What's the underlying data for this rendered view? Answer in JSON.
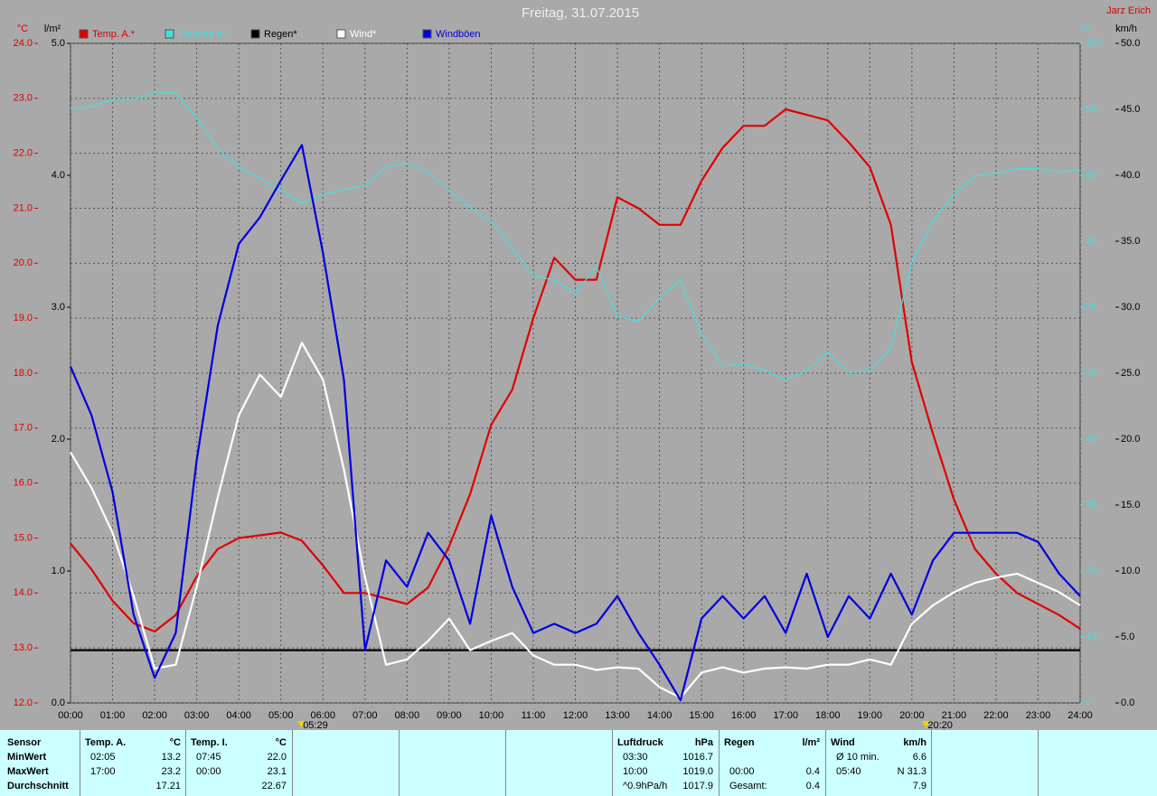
{
  "chart_data": {
    "type": "line",
    "title": "Freitag, 31.07.2015",
    "author": "Jarz Erich",
    "axis_labels": {
      "y": "°C",
      "y2": "l/m²",
      "y3": "%",
      "y4": "km/h"
    },
    "x": [
      0,
      0.5,
      1,
      1.5,
      2,
      2.5,
      3,
      3.5,
      4,
      4.5,
      5,
      5.5,
      6,
      6.5,
      7,
      7.5,
      8,
      8.5,
      9,
      9.5,
      10,
      10.5,
      11,
      11.5,
      12,
      12.5,
      13,
      13.5,
      14,
      14.5,
      15,
      15.5,
      16,
      16.5,
      17,
      17.5,
      18,
      18.5,
      19,
      19.5,
      20,
      20.5,
      21,
      21.5,
      22,
      22.5,
      23,
      23.5,
      24
    ],
    "xlim": [
      0,
      24
    ],
    "xticks": [
      {
        "value": 0,
        "label": "00:00"
      },
      {
        "value": 1,
        "label": "01:00"
      },
      {
        "value": 2,
        "label": "02:00"
      },
      {
        "value": 3,
        "label": "03:00"
      },
      {
        "value": 4,
        "label": "04:00"
      },
      {
        "value": 5,
        "label": "05:00"
      },
      {
        "value": 6,
        "label": "06:00"
      },
      {
        "value": 7,
        "label": "07:00"
      },
      {
        "value": 8,
        "label": "08:00"
      },
      {
        "value": 9,
        "label": "09:00"
      },
      {
        "value": 10,
        "label": "10:00"
      },
      {
        "value": 11,
        "label": "11:00"
      },
      {
        "value": 12,
        "label": "12:00"
      },
      {
        "value": 13,
        "label": "13:00"
      },
      {
        "value": 14,
        "label": "14:00"
      },
      {
        "value": 15,
        "label": "15:00"
      },
      {
        "value": 16,
        "label": "16:00"
      },
      {
        "value": 17,
        "label": "17:00"
      },
      {
        "value": 18,
        "label": "18:00"
      },
      {
        "value": 19,
        "label": "19:00"
      },
      {
        "value": 20,
        "label": "20:00"
      },
      {
        "value": 21,
        "label": "21:00"
      },
      {
        "value": 22,
        "label": "22:00"
      },
      {
        "value": 23,
        "label": "23:00"
      },
      {
        "value": 24,
        "label": "24:00"
      }
    ],
    "markers": [
      {
        "value": 5.4833,
        "label": "05:29"
      },
      {
        "value": 20.3333,
        "label": "20:20"
      }
    ],
    "ylim": [
      12,
      24
    ],
    "yticks": [
      {
        "value": 12,
        "label": "12.0"
      },
      {
        "value": 13,
        "label": "13.0"
      },
      {
        "value": 14,
        "label": "14.0"
      },
      {
        "value": 15,
        "label": "15.0"
      },
      {
        "value": 16,
        "label": "16.0"
      },
      {
        "value": 17,
        "label": "17.0"
      },
      {
        "value": 18,
        "label": "18.0"
      },
      {
        "value": 19,
        "label": "19.0"
      },
      {
        "value": 20,
        "label": "20.0"
      },
      {
        "value": 21,
        "label": "21.0"
      },
      {
        "value": 22,
        "label": "22.0"
      },
      {
        "value": 23,
        "label": "23.0"
      },
      {
        "value": 24,
        "label": "24.0"
      }
    ],
    "y2lim": [
      0,
      5
    ],
    "y2ticks": [
      {
        "value": 0,
        "label": "0.0"
      },
      {
        "value": 1,
        "label": "1.0"
      },
      {
        "value": 2,
        "label": "2.0"
      },
      {
        "value": 3,
        "label": "3.0"
      },
      {
        "value": 4,
        "label": "4.0"
      },
      {
        "value": 5,
        "label": "5.0"
      }
    ],
    "y3lim": [
      0,
      100
    ],
    "y3ticks": [
      0,
      10,
      20,
      30,
      40,
      50,
      60,
      70,
      80,
      90,
      100
    ],
    "y4lim": [
      0,
      50
    ],
    "y4ticks": [
      {
        "value": 0,
        "label": "0.0"
      },
      {
        "value": 5,
        "label": "5.0"
      },
      {
        "value": 10,
        "label": "10.0"
      },
      {
        "value": 15,
        "label": "15.0"
      },
      {
        "value": 20,
        "label": "20.0"
      },
      {
        "value": 25,
        "label": "25.0"
      },
      {
        "value": 30,
        "label": "30.0"
      },
      {
        "value": 35,
        "label": "35.0"
      },
      {
        "value": 40,
        "label": "40.0"
      },
      {
        "value": 45,
        "label": "45.0"
      },
      {
        "value": 50,
        "label": "50.0"
      }
    ],
    "grid": true,
    "series": [
      {
        "name": "Temp. A.*",
        "color": "#e00000",
        "axis": "y",
        "values": [
          14.9,
          14.43,
          13.86,
          13.45,
          13.3,
          13.6,
          14.3,
          14.8,
          15.0,
          15.05,
          15.1,
          14.95,
          14.5,
          14.0,
          14.0,
          13.9,
          13.8,
          14.1,
          14.85,
          15.8,
          17.06,
          17.7,
          19.0,
          20.1,
          19.7,
          19.7,
          21.2,
          21.0,
          20.7,
          20.7,
          21.5,
          22.1,
          22.5,
          22.5,
          22.8,
          22.7,
          22.6,
          22.2,
          21.75,
          20.7,
          18.2,
          16.9,
          15.7,
          14.8,
          14.35,
          14.0,
          13.8,
          13.6,
          13.35
        ]
      },
      {
        "name": "Feuchte A.*",
        "color": "#40e0e0",
        "axis": "y3",
        "values": [
          90.1,
          90.4,
          91.5,
          91.5,
          92.5,
          92.5,
          88.8,
          84.0,
          81.2,
          79.5,
          77.8,
          75.8,
          77.1,
          77.8,
          78.5,
          81.2,
          81.9,
          80.5,
          77.8,
          75.1,
          73.0,
          68.9,
          64.8,
          64.1,
          62.1,
          66.2,
          58.6,
          57.9,
          61.4,
          64.1,
          55.9,
          51.1,
          51.4,
          50.4,
          49.0,
          50.4,
          53.2,
          50.1,
          50.4,
          53.8,
          66.8,
          73.0,
          77.1,
          79.9,
          80.3,
          81.0,
          81.0,
          80.5,
          80.8
        ]
      },
      {
        "name": "Regen*",
        "color": "#000000",
        "axis": "y2",
        "values": [
          0.4,
          0.4,
          0.4,
          0.4,
          0.4,
          0.4,
          0.4,
          0.4,
          0.4,
          0.4,
          0.4,
          0.4,
          0.4,
          0.4,
          0.4,
          0.4,
          0.4,
          0.4,
          0.4,
          0.4,
          0.4,
          0.4,
          0.4,
          0.4,
          0.4,
          0.4,
          0.4,
          0.4,
          0.4,
          0.4,
          0.4,
          0.4,
          0.4,
          0.4,
          0.4,
          0.4,
          0.4,
          0.4,
          0.4,
          0.4,
          0.4,
          0.4,
          0.4,
          0.4,
          0.4,
          0.4,
          0.4,
          0.4,
          0.4
        ]
      },
      {
        "name": "Wind*",
        "color": "#ffffff",
        "axis": "y4",
        "values": [
          19.0,
          16.3,
          12.9,
          8.1,
          2.6,
          2.9,
          8.8,
          15.6,
          21.8,
          24.9,
          23.2,
          27.3,
          24.5,
          17.7,
          9.5,
          2.9,
          3.3,
          4.7,
          6.4,
          4.0,
          4.7,
          5.3,
          3.6,
          2.9,
          2.9,
          2.5,
          2.7,
          2.6,
          1.2,
          0.4,
          2.3,
          2.7,
          2.3,
          2.6,
          2.7,
          2.6,
          2.9,
          2.9,
          3.3,
          2.9,
          6.0,
          7.4,
          8.4,
          9.1,
          9.5,
          9.8,
          9.1,
          8.4,
          7.4
        ]
      },
      {
        "name": "Windböen",
        "color": "#0000e0",
        "axis": "y4",
        "values": [
          25.5,
          21.8,
          16.0,
          6.7,
          1.9,
          5.3,
          18.4,
          28.6,
          34.8,
          36.8,
          39.6,
          42.3,
          34.1,
          24.5,
          4.0,
          10.8,
          8.8,
          12.9,
          10.8,
          6.0,
          14.2,
          8.8,
          5.3,
          6.0,
          5.3,
          6.0,
          8.1,
          5.3,
          2.9,
          0.2,
          6.4,
          8.1,
          6.4,
          8.1,
          5.3,
          9.8,
          5.0,
          8.1,
          6.4,
          9.8,
          6.7,
          10.8,
          12.9,
          12.9,
          12.9,
          12.9,
          12.2,
          9.8,
          8.1
        ]
      }
    ]
  },
  "table": {
    "corner": "Sensor",
    "row_labels": [
      "MinWert",
      "MaxWert",
      "Durchschnitt"
    ],
    "groups": [
      {
        "header": [
          "Temp. A.",
          "°C"
        ],
        "min": [
          "02:05",
          "13.2"
        ],
        "max": [
          "17:00",
          "23.2"
        ],
        "avg": [
          "17.21"
        ]
      },
      {
        "header": [
          "Temp. I.",
          "°C"
        ],
        "min": [
          "07:45",
          "22.0"
        ],
        "max": [
          "00:00",
          "23.1"
        ],
        "avg": [
          "22.67"
        ]
      },
      {
        "header": [
          "Luftdruck",
          "hPa"
        ],
        "min": [
          "03:30",
          "1016.7"
        ],
        "max": [
          "10:00",
          "1019.0"
        ],
        "avg": [
          "^0.9hPa/h",
          "1017.9"
        ]
      },
      {
        "header": [
          "Regen",
          "l/m²"
        ],
        "max": [
          "00:00",
          "0.4"
        ],
        "avg": [
          "Gesamt:",
          "0.4"
        ]
      },
      {
        "header": [
          "Wind",
          "km/h"
        ],
        "min": [
          "Ø 10 min.",
          "6.6"
        ],
        "max": [
          "05:40",
          "N 31.3"
        ],
        "avg": [
          "7.9"
        ]
      }
    ]
  }
}
